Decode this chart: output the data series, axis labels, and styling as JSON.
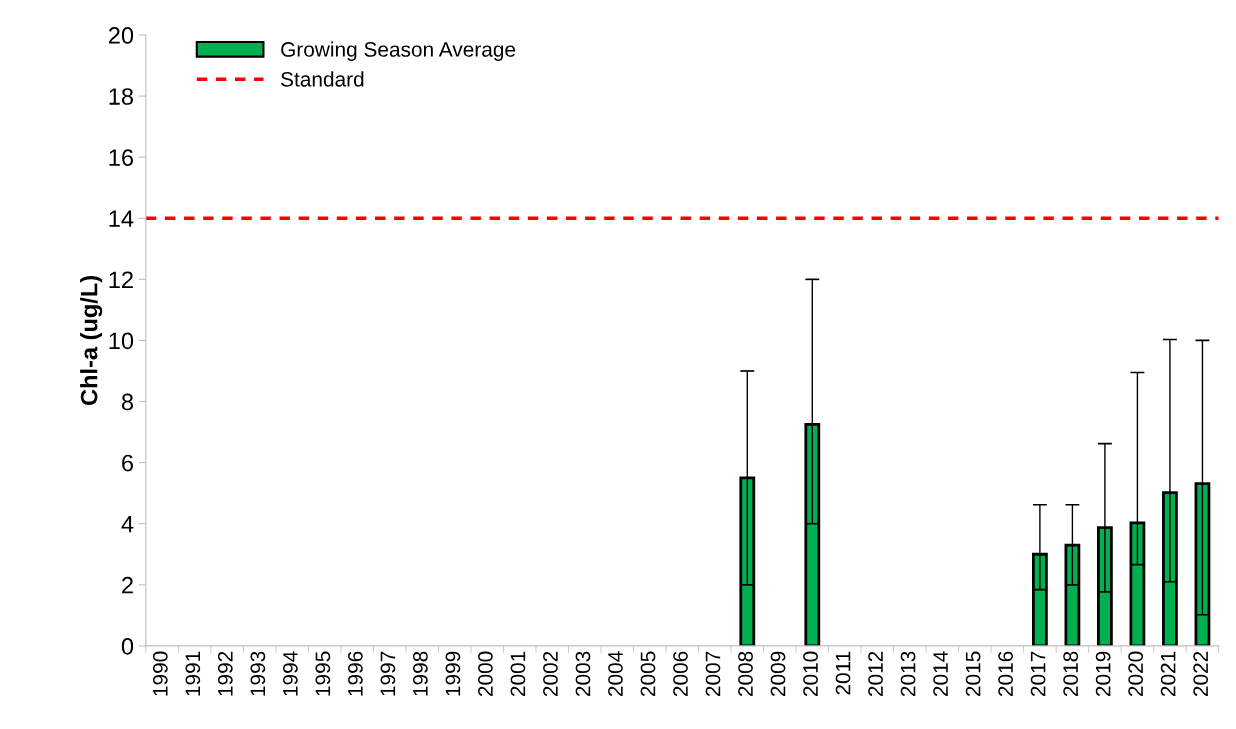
{
  "chart_data": {
    "type": "bar",
    "ylabel": "Chl-a (ug/L)",
    "categories": [
      "1990",
      "1991",
      "1992",
      "1993",
      "1994",
      "1995",
      "1996",
      "1997",
      "1998",
      "1999",
      "2000",
      "2001",
      "2002",
      "2003",
      "2004",
      "2005",
      "2006",
      "2007",
      "2008",
      "2009",
      "2010",
      "2011",
      "2012",
      "2013",
      "2014",
      "2015",
      "2016",
      "2017",
      "2018",
      "2019",
      "2020",
      "2021",
      "2022"
    ],
    "series": [
      {
        "name": "Growing Season Average",
        "color": "#00b050",
        "values": [
          null,
          null,
          null,
          null,
          null,
          null,
          null,
          null,
          null,
          null,
          null,
          null,
          null,
          null,
          null,
          null,
          null,
          null,
          5.5,
          null,
          7.25,
          null,
          null,
          null,
          null,
          null,
          null,
          3.0,
          3.3,
          3.87,
          4.03,
          5.02,
          5.31
        ],
        "errors": [
          null,
          null,
          null,
          null,
          null,
          null,
          null,
          null,
          null,
          null,
          null,
          null,
          null,
          null,
          null,
          null,
          null,
          null,
          [
            2.0,
            9.0
          ],
          null,
          [
            4.0,
            12.0
          ],
          null,
          null,
          null,
          null,
          null,
          null,
          [
            1.84,
            4.62
          ],
          [
            2.0,
            4.62
          ],
          [
            1.77,
            6.62
          ],
          [
            2.66,
            8.95
          ],
          [
            2.1,
            10.03
          ],
          [
            1.02,
            10.0
          ]
        ]
      }
    ],
    "ref_lines": [
      {
        "axis": "y",
        "value": 14,
        "label": "Standard",
        "color": "#ff0000",
        "line_style": "dashed"
      }
    ],
    "ylim": [
      0,
      20
    ],
    "yticks": [
      0,
      2,
      4,
      6,
      8,
      10,
      12,
      14,
      16,
      18,
      20
    ],
    "legend": "top left",
    "grid": false
  }
}
